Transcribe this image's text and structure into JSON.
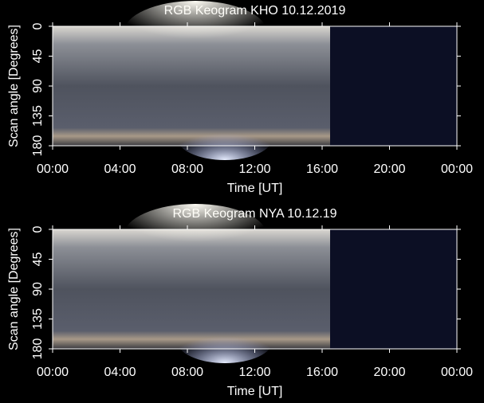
{
  "chart_data": [
    {
      "type": "keogram",
      "title": "RGB Keogram KHO 10.12.2019",
      "x_label": "Time [UT]",
      "y_label": "Scan angle [Degrees]",
      "xlim": [
        0,
        24
      ],
      "xticks": [
        {
          "value": 0,
          "label": "00:00"
        },
        {
          "value": 4,
          "label": "04:00"
        },
        {
          "value": 8,
          "label": "08:00"
        },
        {
          "value": 12,
          "label": "12:00"
        },
        {
          "value": 16,
          "label": "16:00"
        },
        {
          "value": 20,
          "label": "20:00"
        },
        {
          "value": 24,
          "label": "00:00"
        }
      ],
      "ylim": [
        180,
        0
      ],
      "yticks": [
        0,
        45,
        90,
        135,
        180
      ]
    },
    {
      "type": "keogram",
      "title": "RGB Keogram NYA 10.12.19",
      "x_label": "Time [UT]",
      "y_label": "Scan angle [Degrees]",
      "xlim": [
        0,
        24
      ],
      "xticks": [
        {
          "value": 0,
          "label": "00:00"
        },
        {
          "value": 4,
          "label": "04:00"
        },
        {
          "value": 8,
          "label": "08:00"
        },
        {
          "value": 12,
          "label": "12:00"
        },
        {
          "value": 16,
          "label": "16:00"
        },
        {
          "value": 20,
          "label": "20:00"
        },
        {
          "value": 24,
          "label": "00:00"
        }
      ],
      "ylim": [
        180,
        0
      ],
      "yticks": [
        0,
        45,
        90,
        135,
        180
      ]
    }
  ]
}
